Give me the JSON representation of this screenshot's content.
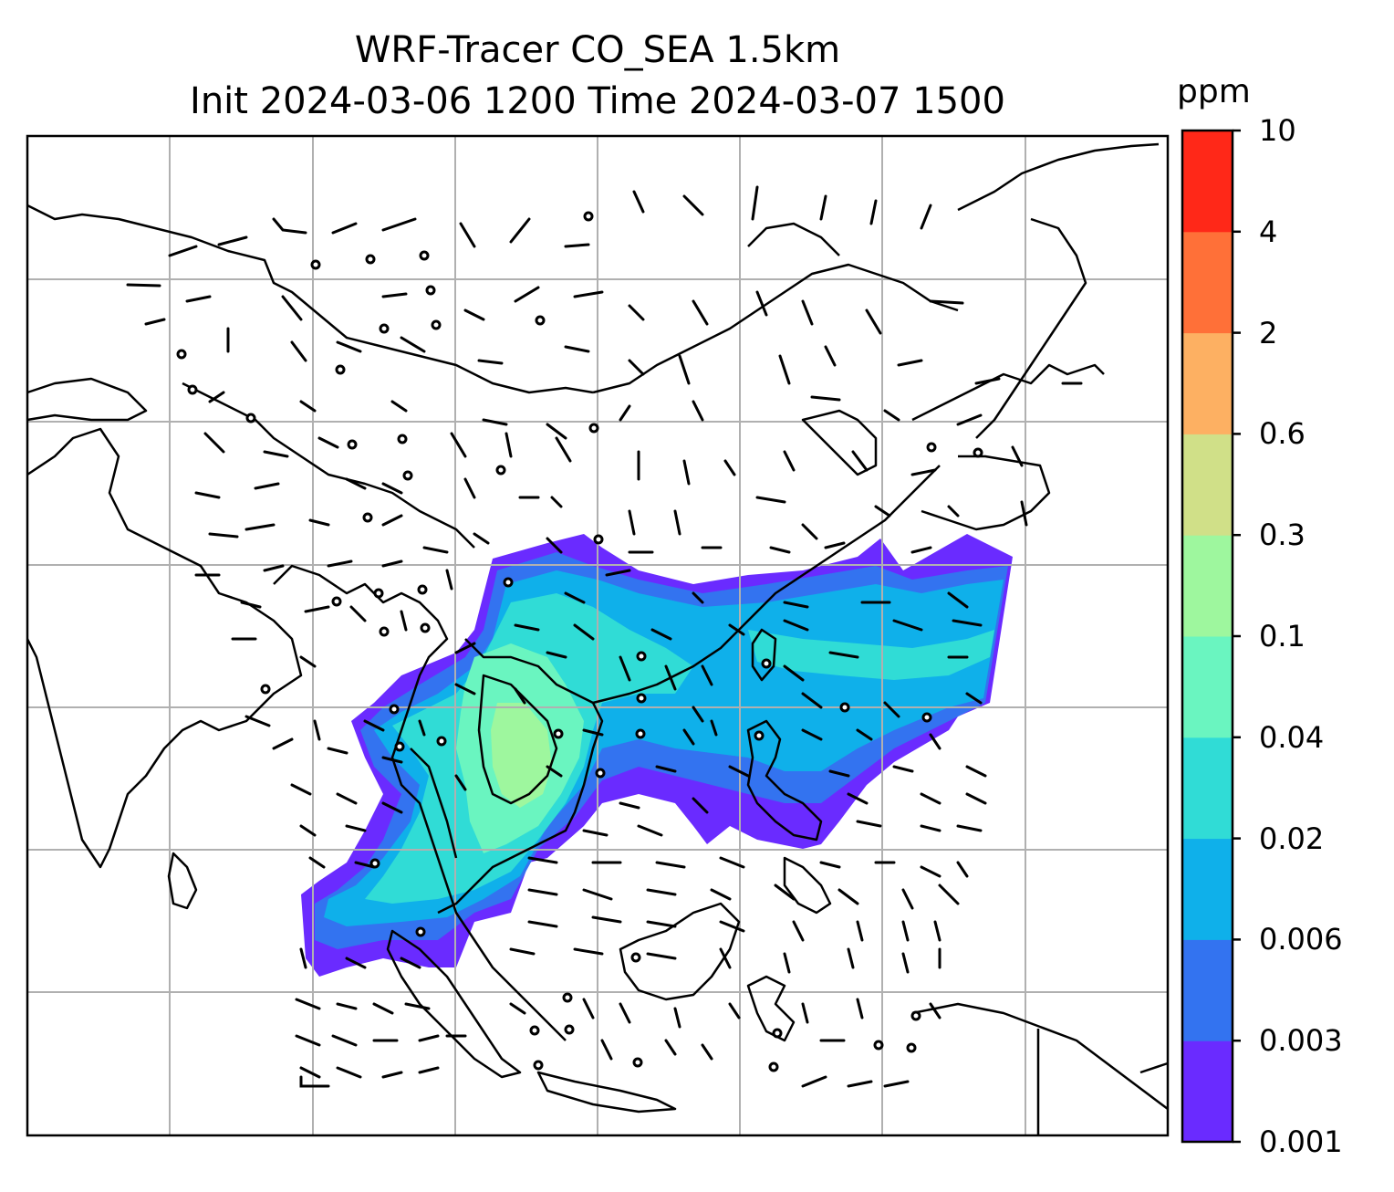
{
  "title_line1": "WRF-Tracer CO_SEA 1.5km",
  "title_line2": "Init 2024-03-06 1200 Time 2024-03-07 1500",
  "colorbar": {
    "unit": "ppm",
    "labels": [
      "0.001",
      "0.003",
      "0.006",
      "0.02",
      "0.04",
      "0.1",
      "0.3",
      "0.6",
      "2",
      "4",
      "10"
    ],
    "colors": [
      "#6a2bff",
      "#3373f0",
      "#0fb0ea",
      "#30dcd6",
      "#6af5c0",
      "#9ef79e",
      "#d0e088",
      "#fdb062",
      "#ff7038",
      "#ff2818"
    ]
  },
  "map": {
    "field": "CO tracer concentration",
    "plume_colors": {
      "lowest": "#6a2bff",
      "low": "#3373f0",
      "mid": "#0fb0ea",
      "midhigh": "#30dcd6",
      "high": "#6af5c0",
      "peak": "#9ef79e"
    },
    "coast_color": "#000000",
    "grid_color": "#b0b0b0"
  }
}
